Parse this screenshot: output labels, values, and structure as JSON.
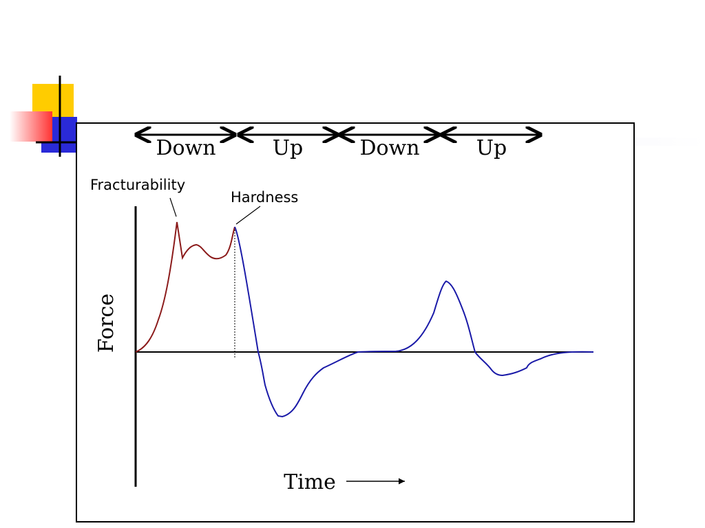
{
  "phases": [
    "Down",
    "Up",
    "Down",
    "Up"
  ],
  "annotations": {
    "fracturability": "Fracturability",
    "hardness": "Hardness"
  },
  "axes": {
    "ylabel": "Force",
    "xlabel": "Time"
  },
  "colors": {
    "first_compression": "#8b1a1a",
    "rest_of_curve": "#1a1aa8",
    "deco_yellow": "#ffcc00",
    "deco_red": "#ff3333",
    "deco_blue": "#2a2ad8"
  }
}
